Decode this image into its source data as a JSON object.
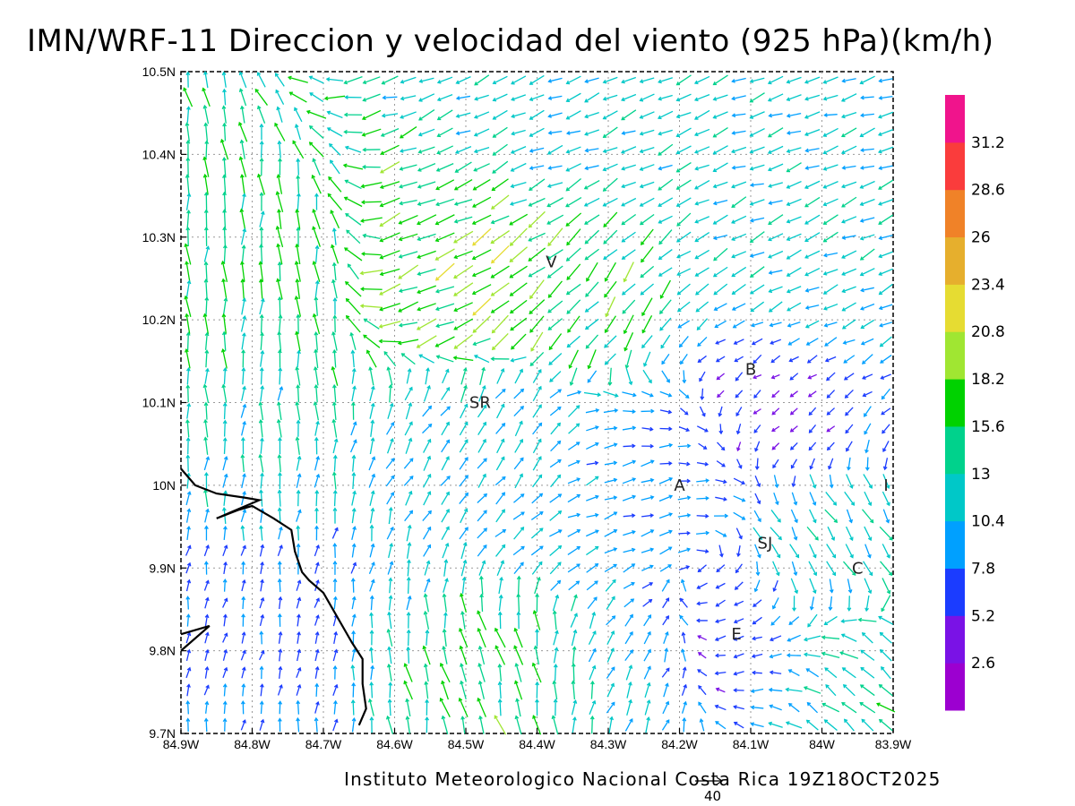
{
  "title": "IMN/WRF-11 Direccion y velocidad del viento (925 hPa)(km/h)",
  "footer": "Instituto Meteorologico Nacional Costa Rica  19Z18OCT2025",
  "reference_vector_label": "40",
  "map": {
    "lon_range": [
      -84.9,
      -83.9
    ],
    "lat_range": [
      9.7,
      10.5
    ],
    "lon_ticks": [
      {
        "value": -84.9,
        "label": "84.9W"
      },
      {
        "value": -84.8,
        "label": "84.8W"
      },
      {
        "value": -84.7,
        "label": "84.7W"
      },
      {
        "value": -84.6,
        "label": "84.6W"
      },
      {
        "value": -84.5,
        "label": "84.5W"
      },
      {
        "value": -84.4,
        "label": "84.4W"
      },
      {
        "value": -84.3,
        "label": "84.3W"
      },
      {
        "value": -84.2,
        "label": "84.2W"
      },
      {
        "value": -84.1,
        "label": "84.1W"
      },
      {
        "value": -84.0,
        "label": "84W"
      },
      {
        "value": -83.9,
        "label": "83.9W"
      }
    ],
    "lat_ticks": [
      {
        "value": 10.5,
        "label": "10.5N"
      },
      {
        "value": 10.4,
        "label": "10.4N"
      },
      {
        "value": 10.3,
        "label": "10.3N"
      },
      {
        "value": 10.2,
        "label": "10.2N"
      },
      {
        "value": 10.1,
        "label": "10.1N"
      },
      {
        "value": 10.0,
        "label": "10N"
      },
      {
        "value": 9.9,
        "label": "9.9N"
      },
      {
        "value": 9.8,
        "label": "9.8N"
      },
      {
        "value": 9.7,
        "label": "9.7N"
      }
    ],
    "grid": true,
    "cities": [
      {
        "label": "V",
        "lon": -84.38,
        "lat": 10.27
      },
      {
        "label": "SR",
        "lon": -84.48,
        "lat": 10.1
      },
      {
        "label": "B",
        "lon": -84.1,
        "lat": 10.14
      },
      {
        "label": "A",
        "lon": -84.2,
        "lat": 10.0
      },
      {
        "label": "SJ",
        "lon": -84.08,
        "lat": 9.93
      },
      {
        "label": "C",
        "lon": -83.95,
        "lat": 9.9
      },
      {
        "label": "E",
        "lon": -84.12,
        "lat": 9.82
      },
      {
        "label": "I",
        "lon": -83.91,
        "lat": 10.0
      }
    ],
    "coastline": [
      [
        -84.9,
        10.02
      ],
      [
        -84.88,
        10.0
      ],
      [
        -84.85,
        9.99
      ],
      [
        -84.81,
        9.985
      ],
      [
        -84.79,
        9.982
      ],
      [
        -84.85,
        9.96
      ],
      [
        -84.82,
        9.97
      ],
      [
        -84.8,
        9.975
      ],
      [
        -84.77,
        9.96
      ],
      [
        -84.745,
        9.946
      ],
      [
        -84.74,
        9.92
      ],
      [
        -84.73,
        9.895
      ],
      [
        -84.72,
        9.885
      ],
      [
        -84.7,
        9.87
      ],
      [
        -84.68,
        9.84
      ],
      [
        -84.66,
        9.81
      ],
      [
        -84.645,
        9.79
      ],
      [
        -84.645,
        9.76
      ],
      [
        -84.64,
        9.73
      ],
      [
        -84.65,
        9.71
      ]
    ],
    "coastline_south": [
      [
        -84.9,
        9.8
      ],
      [
        -84.86,
        9.83
      ],
      [
        -84.9,
        9.82
      ]
    ]
  },
  "colorbar": {
    "levels": [
      "2.6",
      "5.2",
      "7.8",
      "10.4",
      "13",
      "15.6",
      "18.2",
      "20.8",
      "23.4",
      "26",
      "28.6",
      "31.2"
    ],
    "colors": [
      "#9c00d0",
      "#7a12e6",
      "#1b3cff",
      "#00a0ff",
      "#00c8c8",
      "#00d28c",
      "#00d200",
      "#a0e632",
      "#e6dc32",
      "#e6af2d",
      "#f08228",
      "#fa3c3c",
      "#f0148c"
    ]
  },
  "chart_data": {
    "type": "wind_vector_field",
    "title": "IMN/WRF-11 Direccion y velocidad del viento (925 hPa)(km/h)",
    "units": "km/h",
    "level": "925 hPa",
    "valid_time": "19Z18OCT2025",
    "xlim": [
      -84.9,
      -83.9
    ],
    "ylim": [
      9.7,
      10.5
    ],
    "speed_colorbar": [
      2.6,
      5.2,
      7.8,
      10.4,
      13,
      15.6,
      18.2,
      20.8,
      23.4,
      26,
      28.6,
      31.2
    ],
    "reference_vector": 40,
    "regions": [
      {
        "name": "north band (10.3N-10.5N)",
        "direction_deg_from": 65,
        "speed_kmh": 11
      },
      {
        "name": "northwest (84.9W-84.7W, 10.1N-10.4N)",
        "direction_deg_from": 185,
        "speed_kmh": 15
      },
      {
        "name": "center (84.6W-84.3W, 10.2N-10.35N)",
        "direction_deg_from": 60,
        "speed_kmh": 19
      },
      {
        "name": "center-south (84.6W-84.2W, 9.9N-10.15N)",
        "direction_deg_from": 225,
        "speed_kmh": 9
      },
      {
        "name": "southwest (84.9W-84.6W, 9.7N-10.0N)",
        "direction_deg_from": 200,
        "speed_kmh": 7
      },
      {
        "name": "south-central (84.5W-84.3W, 9.7N-9.85N)",
        "direction_deg_from": 160,
        "speed_kmh": 16
      },
      {
        "name": "east (84.1W-83.9W, 9.8N-10.0N)",
        "direction_deg_from": 320,
        "speed_kmh": 13
      },
      {
        "name": "east calm (84.2W-84.0W, 10.05N-10.15N)",
        "direction_deg_from": 45,
        "speed_kmh": 3
      }
    ]
  }
}
